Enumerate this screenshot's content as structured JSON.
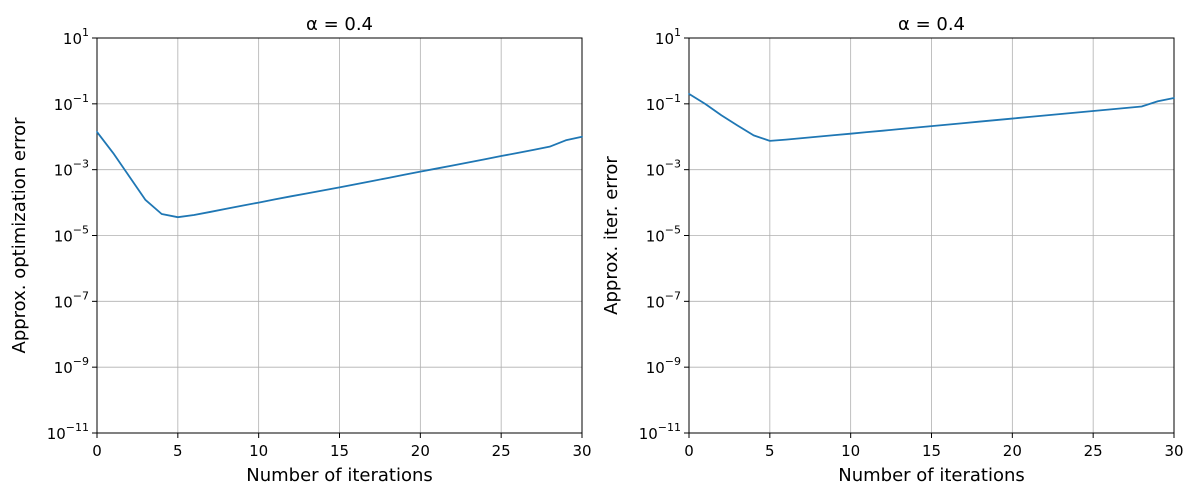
{
  "chart_data": [
    {
      "type": "line",
      "title": "α = 0.4",
      "xlabel": "Number of iterations",
      "ylabel": "Approx. optimization error",
      "xlim": [
        0,
        30
      ],
      "ylim": [
        1e-11,
        10
      ],
      "yscale": "log",
      "grid": true,
      "x_ticks": [
        0,
        5,
        10,
        15,
        20,
        25,
        30
      ],
      "y_tick_exponents": [
        1,
        -1,
        -3,
        -5,
        -7,
        -9,
        -11
      ],
      "series": [
        {
          "name": "approx. optimization error",
          "color": "#1f77b4",
          "x": [
            0,
            1,
            2,
            3,
            4,
            5,
            6,
            7,
            8,
            9,
            10,
            11,
            12,
            13,
            14,
            15,
            16,
            17,
            18,
            19,
            20,
            21,
            22,
            23,
            24,
            25,
            26,
            27,
            28,
            29,
            30
          ],
          "values": [
            0.014,
            0.0032,
            0.00062,
            0.00012,
            4.5e-05,
            3.6e-05,
            4.2e-05,
            5.2e-05,
            6.5e-05,
            8.1e-05,
            0.0001,
            0.000125,
            0.000155,
            0.00019,
            0.000235,
            0.00029,
            0.00036,
            0.00045,
            0.00056,
            0.0007,
            0.00087,
            0.00108,
            0.00134,
            0.00167,
            0.00208,
            0.0026,
            0.0032,
            0.004,
            0.005,
            0.0078,
            0.01
          ]
        }
      ]
    },
    {
      "type": "line",
      "title": "α = 0.4",
      "xlabel": "Number of iterations",
      "ylabel": "Approx. iter. error",
      "xlim": [
        0,
        30
      ],
      "ylim": [
        1e-11,
        10
      ],
      "yscale": "log",
      "grid": true,
      "x_ticks": [
        0,
        5,
        10,
        15,
        20,
        25,
        30
      ],
      "y_tick_exponents": [
        1,
        -1,
        -3,
        -5,
        -7,
        -9,
        -11
      ],
      "series": [
        {
          "name": "approx. iter. error",
          "color": "#1f77b4",
          "x": [
            0,
            1,
            2,
            3,
            4,
            5,
            6,
            7,
            8,
            9,
            10,
            11,
            12,
            13,
            14,
            15,
            16,
            17,
            18,
            19,
            20,
            21,
            22,
            23,
            24,
            25,
            26,
            27,
            28,
            29,
            30
          ],
          "values": [
            0.2,
            0.1,
            0.045,
            0.022,
            0.011,
            0.0075,
            0.0082,
            0.0091,
            0.0101,
            0.0112,
            0.0124,
            0.0138,
            0.0153,
            0.017,
            0.0189,
            0.021,
            0.0234,
            0.026,
            0.0289,
            0.0321,
            0.0357,
            0.0397,
            0.0441,
            0.049,
            0.0545,
            0.0605,
            0.0673,
            0.0748,
            0.083,
            0.12,
            0.15
          ]
        }
      ]
    }
  ]
}
